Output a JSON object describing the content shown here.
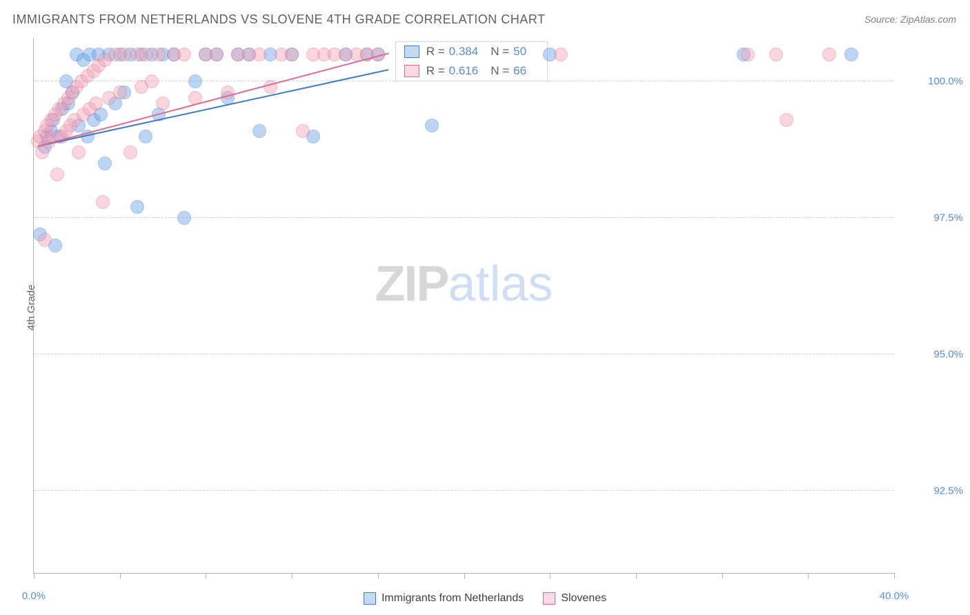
{
  "title": "IMMIGRANTS FROM NETHERLANDS VS SLOVENE 4TH GRADE CORRELATION CHART",
  "source": "Source: ZipAtlas.com",
  "watermark": {
    "zip": "ZIP",
    "atlas": "atlas"
  },
  "chart": {
    "type": "scatter",
    "ylabel": "4th Grade",
    "xlim": [
      0,
      40
    ],
    "ylim": [
      91,
      100.8
    ],
    "ytick_values": [
      92.5,
      95.0,
      97.5,
      100.0
    ],
    "ytick_labels": [
      "92.5%",
      "95.0%",
      "97.5%",
      "100.0%"
    ],
    "xtick_values": [
      0,
      4,
      8,
      12,
      16,
      20,
      24,
      28,
      32,
      36,
      40
    ],
    "xtick_labels": {
      "0": "0.0%",
      "40": "40.0%"
    },
    "grid_color": "#d0d0d0",
    "axis_color": "#b0b0b0",
    "background_color": "#ffffff",
    "marker_radius": 10,
    "marker_opacity": 0.45,
    "series": [
      {
        "name": "Immigrants from Netherlands",
        "fill_color": "#6fa3e8",
        "stroke_color": "#3d78c9",
        "R": 0.384,
        "N": 50,
        "trend": {
          "x1": 0.2,
          "y1": 98.8,
          "x2": 16.5,
          "y2": 100.2,
          "width": 2
        },
        "points": [
          [
            0.3,
            97.2
          ],
          [
            0.5,
            98.8
          ],
          [
            0.6,
            99.0
          ],
          [
            0.8,
            99.1
          ],
          [
            0.9,
            99.3
          ],
          [
            1.0,
            97.0
          ],
          [
            1.2,
            99.0
          ],
          [
            1.3,
            99.5
          ],
          [
            1.5,
            100.0
          ],
          [
            1.6,
            99.6
          ],
          [
            1.8,
            99.8
          ],
          [
            2.0,
            100.5
          ],
          [
            2.1,
            99.2
          ],
          [
            2.3,
            100.4
          ],
          [
            2.5,
            99.0
          ],
          [
            2.6,
            100.5
          ],
          [
            2.8,
            99.3
          ],
          [
            3.0,
            100.5
          ],
          [
            3.1,
            99.4
          ],
          [
            3.3,
            98.5
          ],
          [
            3.5,
            100.5
          ],
          [
            3.8,
            99.6
          ],
          [
            4.0,
            100.5
          ],
          [
            4.2,
            99.8
          ],
          [
            4.5,
            100.5
          ],
          [
            4.8,
            97.7
          ],
          [
            5.0,
            100.5
          ],
          [
            5.2,
            99.0
          ],
          [
            5.5,
            100.5
          ],
          [
            5.8,
            99.4
          ],
          [
            6.0,
            100.5
          ],
          [
            6.5,
            100.5
          ],
          [
            7.0,
            97.5
          ],
          [
            7.5,
            100.0
          ],
          [
            8.0,
            100.5
          ],
          [
            8.5,
            100.5
          ],
          [
            9.0,
            99.7
          ],
          [
            9.5,
            100.5
          ],
          [
            10.0,
            100.5
          ],
          [
            10.5,
            99.1
          ],
          [
            11.0,
            100.5
          ],
          [
            12.0,
            100.5
          ],
          [
            13.0,
            99.0
          ],
          [
            14.5,
            100.5
          ],
          [
            15.5,
            100.5
          ],
          [
            16.0,
            100.5
          ],
          [
            18.5,
            99.2
          ],
          [
            24.0,
            100.5
          ],
          [
            33.0,
            100.5
          ],
          [
            38.0,
            100.5
          ]
        ]
      },
      {
        "name": "Slovenes",
        "fill_color": "#f2a3b8",
        "stroke_color": "#e06b8b",
        "R": 0.616,
        "N": 66,
        "trend": {
          "x1": 0.2,
          "y1": 98.8,
          "x2": 16.5,
          "y2": 100.5,
          "width": 2
        },
        "points": [
          [
            0.2,
            98.9
          ],
          [
            0.3,
            99.0
          ],
          [
            0.4,
            98.7
          ],
          [
            0.5,
            99.1
          ],
          [
            0.5,
            97.1
          ],
          [
            0.6,
            99.2
          ],
          [
            0.7,
            98.9
          ],
          [
            0.8,
            99.3
          ],
          [
            0.9,
            99.0
          ],
          [
            1.0,
            99.4
          ],
          [
            1.1,
            98.3
          ],
          [
            1.2,
            99.5
          ],
          [
            1.3,
            99.0
          ],
          [
            1.4,
            99.6
          ],
          [
            1.5,
            99.1
          ],
          [
            1.6,
            99.7
          ],
          [
            1.7,
            99.2
          ],
          [
            1.8,
            99.8
          ],
          [
            1.9,
            99.3
          ],
          [
            2.0,
            99.9
          ],
          [
            2.1,
            98.7
          ],
          [
            2.2,
            100.0
          ],
          [
            2.3,
            99.4
          ],
          [
            2.5,
            100.1
          ],
          [
            2.6,
            99.5
          ],
          [
            2.8,
            100.2
          ],
          [
            2.9,
            99.6
          ],
          [
            3.0,
            100.3
          ],
          [
            3.2,
            97.8
          ],
          [
            3.3,
            100.4
          ],
          [
            3.5,
            99.7
          ],
          [
            3.8,
            100.5
          ],
          [
            4.0,
            99.8
          ],
          [
            4.2,
            100.5
          ],
          [
            4.5,
            98.7
          ],
          [
            4.8,
            100.5
          ],
          [
            5.0,
            99.9
          ],
          [
            5.2,
            100.5
          ],
          [
            5.5,
            100.0
          ],
          [
            5.8,
            100.5
          ],
          [
            6.0,
            99.6
          ],
          [
            6.5,
            100.5
          ],
          [
            7.0,
            100.5
          ],
          [
            7.5,
            99.7
          ],
          [
            8.0,
            100.5
          ],
          [
            8.5,
            100.5
          ],
          [
            9.0,
            99.8
          ],
          [
            9.5,
            100.5
          ],
          [
            10.0,
            100.5
          ],
          [
            10.5,
            100.5
          ],
          [
            11.0,
            99.9
          ],
          [
            11.5,
            100.5
          ],
          [
            12.0,
            100.5
          ],
          [
            12.5,
            99.1
          ],
          [
            13.0,
            100.5
          ],
          [
            13.5,
            100.5
          ],
          [
            14.0,
            100.5
          ],
          [
            14.5,
            100.5
          ],
          [
            15.0,
            100.5
          ],
          [
            15.5,
            100.5
          ],
          [
            16.0,
            100.5
          ],
          [
            24.5,
            100.5
          ],
          [
            33.2,
            100.5
          ],
          [
            34.5,
            100.5
          ],
          [
            35.0,
            99.3
          ],
          [
            37.0,
            100.5
          ]
        ]
      }
    ],
    "stat_box": {
      "rows": [
        {
          "swatch_fill": "#6fa3e8",
          "swatch_stroke": "#3d78c9",
          "r_label": "R =",
          "r_value": "0.384",
          "n_label": "N =",
          "n_value": "50"
        },
        {
          "swatch_fill": "#f2a3b8",
          "swatch_stroke": "#e06b8b",
          "r_label": "R =",
          "r_value": "0.616",
          "n_label": "N =",
          "n_value": "66"
        }
      ]
    },
    "bottom_legend": [
      {
        "label": "Immigrants from Netherlands",
        "fill": "#6fa3e8",
        "stroke": "#3d78c9"
      },
      {
        "label": "Slovenes",
        "fill": "#f2a3b8",
        "stroke": "#e06b8b"
      }
    ]
  }
}
